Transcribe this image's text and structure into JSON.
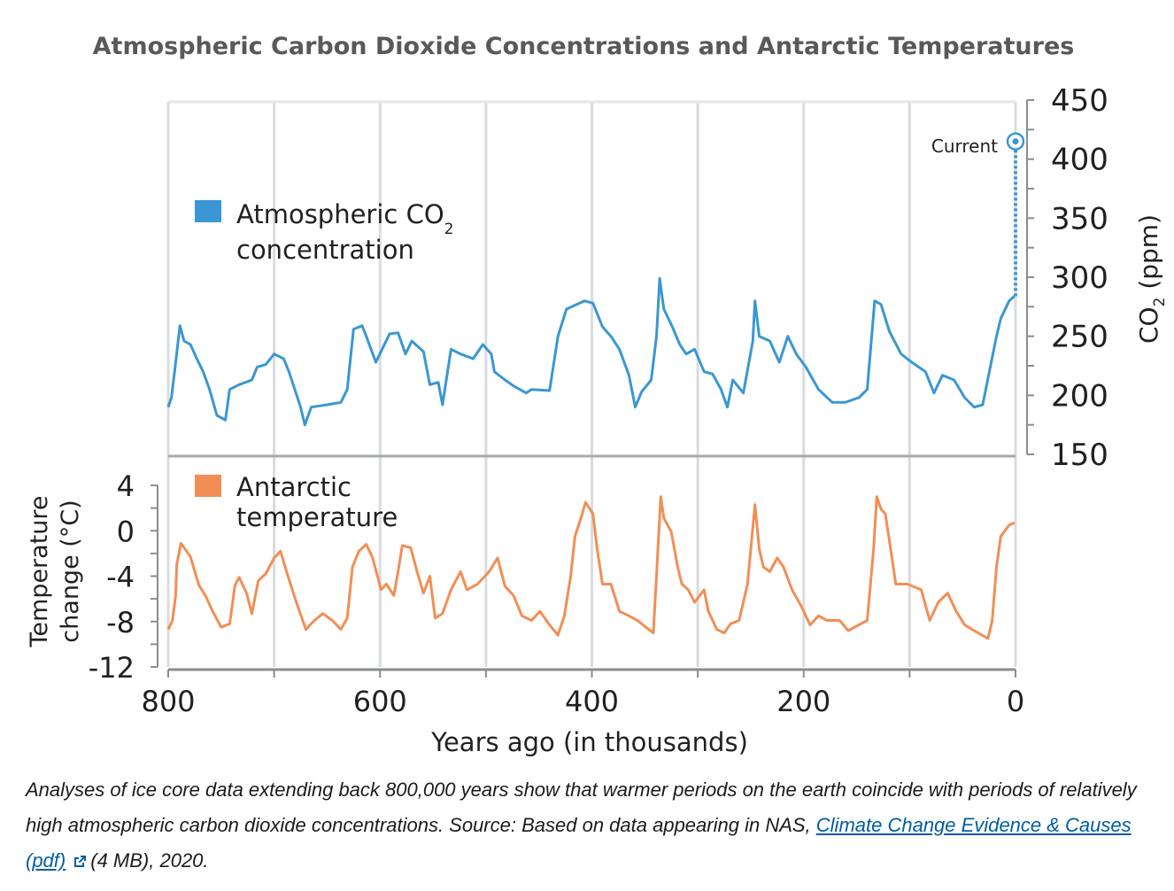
{
  "chart_data": [
    {
      "type": "line",
      "panel": "top",
      "title": "Atmospheric Carbon Dioxide Concentrations and Antarctic Temperatures",
      "xlabel": "Years ago (in thousands)",
      "ylabel": "CO2 (ppm)",
      "ylabel_main": "CO",
      "ylabel_sub": "2",
      "ylabel_unit": "(ppm)",
      "xlim": [
        800,
        0
      ],
      "ylim": [
        150,
        450
      ],
      "yticks": [
        150,
        200,
        250,
        300,
        350,
        400,
        450
      ],
      "yaxis_side": "right",
      "grid": true,
      "legend": {
        "label_line1": "Atmospheric CO",
        "label_sub": "2",
        "label_line2": "concentration",
        "placement": "top-left"
      },
      "color": "#3a97d3",
      "annotation": {
        "label": "Current",
        "x": 0,
        "y": 415,
        "from_y": 284
      },
      "series": [
        {
          "name": "Atmospheric CO2 concentration",
          "x": [
            800,
            797,
            794,
            789,
            785,
            779,
            773,
            767,
            761,
            754,
            746,
            742,
            733,
            721,
            716,
            708,
            700,
            691,
            686,
            675,
            671,
            665,
            650,
            637,
            631,
            625,
            617,
            613,
            604,
            598,
            591,
            583,
            576,
            570,
            559,
            553,
            545,
            541,
            533,
            524,
            512,
            503,
            495,
            492,
            482,
            474,
            462,
            457,
            440,
            432,
            424,
            407,
            399,
            390,
            382,
            374,
            365,
            359,
            353,
            344,
            339,
            336,
            332,
            324,
            317,
            311,
            303,
            294,
            286,
            278,
            272,
            267,
            257,
            248,
            246,
            242,
            232,
            223,
            215,
            207,
            198,
            186,
            173,
            161,
            148,
            140,
            133,
            127,
            119,
            108,
            98,
            85,
            77,
            69,
            58,
            48,
            39,
            31,
            18,
            14,
            6,
            1
          ],
          "y": [
            190,
            198,
            220,
            259,
            246,
            243,
            231,
            220,
            205,
            183,
            179,
            205,
            209,
            213,
            224,
            226,
            235,
            231,
            220,
            190,
            175,
            190,
            192,
            194,
            205,
            256,
            259,
            250,
            228,
            239,
            252,
            253,
            235,
            246,
            237,
            209,
            211,
            192,
            239,
            235,
            231,
            243,
            235,
            220,
            213,
            208,
            202,
            205,
            204,
            250,
            273,
            280,
            278,
            258,
            250,
            239,
            217,
            190,
            203,
            213,
            250,
            299,
            273,
            258,
            243,
            235,
            239,
            220,
            218,
            205,
            190,
            213,
            202,
            246,
            280,
            250,
            246,
            228,
            250,
            235,
            224,
            205,
            194,
            194,
            198,
            205,
            280,
            277,
            254,
            235,
            228,
            220,
            202,
            217,
            213,
            198,
            190,
            192,
            250,
            265,
            280,
            284
          ]
        }
      ]
    },
    {
      "type": "line",
      "panel": "bottom",
      "xlabel": "Years ago (in thousands)",
      "ylabel": "Temperature change (°C)",
      "ylabel_line1": "Temperature",
      "ylabel_line2": "change (°C)",
      "xlim": [
        800,
        0
      ],
      "ylim": [
        -12,
        4
      ],
      "yticks": [
        4,
        0,
        -4,
        -8,
        -12
      ],
      "xticks": [
        800,
        600,
        400,
        200,
        0
      ],
      "yaxis_side": "left",
      "grid": true,
      "legend": {
        "label_line1": "Antarctic",
        "label_line2": "temperature",
        "placement": "top-left"
      },
      "color": "#f28e55",
      "series": [
        {
          "name": "Antarctic temperature",
          "x": [
            800,
            796,
            793,
            792,
            788,
            779,
            771,
            765,
            758,
            750,
            742,
            737,
            733,
            726,
            721,
            715,
            708,
            700,
            694,
            687,
            679,
            670,
            662,
            654,
            645,
            637,
            631,
            626,
            620,
            613,
            607,
            599,
            594,
            587,
            583,
            579,
            571,
            565,
            559,
            553,
            548,
            541,
            533,
            524,
            518,
            508,
            497,
            489,
            482,
            474,
            466,
            457,
            449,
            440,
            432,
            426,
            420,
            416,
            409,
            406,
            399,
            395,
            390,
            382,
            374,
            365,
            357,
            349,
            342,
            339,
            335,
            332,
            325,
            319,
            315,
            309,
            303,
            294,
            290,
            282,
            275,
            269,
            261,
            253,
            246,
            242,
            238,
            232,
            225,
            219,
            211,
            202,
            194,
            186,
            178,
            166,
            158,
            148,
            140,
            134,
            131,
            127,
            123,
            119,
            113,
            102,
            89,
            81,
            73,
            64,
            56,
            48,
            39,
            26,
            22,
            18,
            14,
            6,
            1
          ],
          "y": [
            -8.7,
            -7.9,
            -5.7,
            -3.0,
            -1.1,
            -2.3,
            -4.8,
            -5.7,
            -7.1,
            -8.5,
            -8.2,
            -4.8,
            -4.1,
            -5.5,
            -7.3,
            -4.4,
            -3.8,
            -2.4,
            -1.8,
            -4.0,
            -6.3,
            -8.7,
            -7.9,
            -7.3,
            -7.9,
            -8.7,
            -7.7,
            -3.2,
            -1.8,
            -1.2,
            -2.4,
            -5.2,
            -4.7,
            -5.7,
            -3.6,
            -1.3,
            -1.5,
            -3.6,
            -5.5,
            -4.0,
            -7.7,
            -7.3,
            -5.2,
            -3.6,
            -5.2,
            -4.7,
            -3.6,
            -2.4,
            -4.9,
            -5.7,
            -7.5,
            -7.9,
            -7.1,
            -8.3,
            -9.2,
            -7.5,
            -4.0,
            -0.5,
            1.5,
            2.5,
            1.5,
            -1.6,
            -4.7,
            -4.7,
            -7.1,
            -7.5,
            -7.9,
            -8.5,
            -9.0,
            -4.0,
            3.0,
            1.1,
            -0.1,
            -3.2,
            -4.7,
            -5.2,
            -6.3,
            -5.2,
            -7.1,
            -8.7,
            -9.0,
            -8.2,
            -7.9,
            -4.7,
            2.3,
            -1.6,
            -3.2,
            -3.6,
            -2.4,
            -3.2,
            -5.2,
            -6.7,
            -8.3,
            -7.5,
            -7.9,
            -7.9,
            -8.8,
            -8.3,
            -7.9,
            -1.6,
            3.0,
            1.9,
            1.5,
            -0.9,
            -4.7,
            -4.7,
            -5.2,
            -7.9,
            -6.3,
            -5.5,
            -7.1,
            -8.3,
            -8.8,
            -9.5,
            -7.9,
            -3.2,
            -0.5,
            0.5,
            0.7
          ]
        }
      ]
    }
  ],
  "title": "Atmospheric Carbon Dioxide Concentrations and Antarctic Temperatures",
  "xaxis": {
    "label": "Years ago (in thousands)",
    "ticks": [
      "800",
      "600",
      "400",
      "200",
      "0"
    ]
  },
  "co2_axis": {
    "ticks": [
      "450",
      "400",
      "350",
      "300",
      "250",
      "200",
      "150"
    ],
    "label_main": "CO",
    "label_sub": "2",
    "label_unit": " (ppm)"
  },
  "temp_axis": {
    "ticks": [
      "4",
      "0",
      "-4",
      "-8",
      "-12"
    ],
    "label_line1": "Temperature",
    "label_line2": "change (°C)"
  },
  "legend": {
    "co2_line1": "Atmospheric CO",
    "co2_sub": "2",
    "co2_line2": "concentration",
    "temp_line1": "Antarctic",
    "temp_line2": "temperature"
  },
  "annotation": {
    "current_label": "Current"
  },
  "colors": {
    "co2": "#3a97d3",
    "temp": "#f28e55",
    "grid": "#d9dcdf",
    "axis": "#8a8d90",
    "title": "#595959",
    "link": "#005ea2"
  },
  "caption": {
    "text_before_link": "Analyses of ice core data extending back 800,000 years show that warmer periods on the earth coincide with periods of relatively high atmospheric carbon dioxide concentrations. Source: Based on data appearing in NAS, ",
    "link_text": "Climate Change Evidence & Causes (pdf)",
    "link_icon": "external-link-icon",
    "text_after_link": "(4 MB), 2020."
  }
}
